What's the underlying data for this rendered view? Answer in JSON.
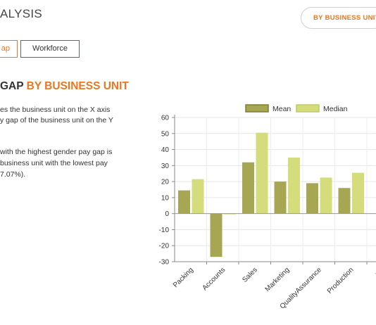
{
  "header": {
    "title": "ALYSIS",
    "filter_button": "BY BUSINESS UNIT"
  },
  "tabs": [
    {
      "label": "ap",
      "active": true
    },
    {
      "label": "Workforce",
      "active": false
    }
  ],
  "section": {
    "title_part1": "GAP",
    "title_part2": "BY BUSINESS UNIT"
  },
  "description": {
    "lines": [
      "es the business unit on the X axis",
      "y gap of the business unit on the Y",
      "",
      "with the highest gender pay gap is",
      " business unit with the lowest pay",
      "7.07%)."
    ]
  },
  "colors": {
    "accent": "#e87722",
    "mean": "#a7a653",
    "median": "#d5dc7c"
  },
  "chart_data": {
    "type": "bar",
    "categories": [
      "Packing",
      "Accounts",
      "Sales",
      "Marketing",
      "QualityAssurance",
      "Production",
      "Dis"
    ],
    "series": [
      {
        "name": "Mean",
        "values": [
          14.5,
          -27,
          32,
          20,
          19,
          16,
          null
        ]
      },
      {
        "name": "Median",
        "values": [
          21.5,
          0,
          50.5,
          35,
          22.5,
          25.5,
          null
        ]
      }
    ],
    "ylim": [
      -30,
      60
    ],
    "yticks": [
      "60",
      "50",
      "40",
      "30",
      "20",
      "10",
      "0",
      "-10",
      "-20",
      "-30"
    ],
    "grid": true,
    "legend": "top"
  }
}
